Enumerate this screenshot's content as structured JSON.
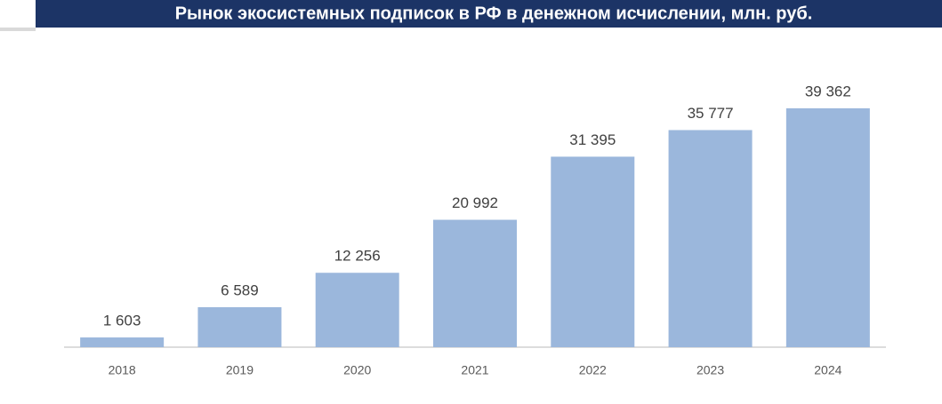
{
  "chart_data": {
    "type": "bar",
    "title": "Рынок экосистемных подписок в РФ в денежном исчислении, млн. руб.",
    "categories": [
      "2018",
      "2019",
      "2020",
      "2021",
      "2022",
      "2023",
      "2024"
    ],
    "values": [
      1603,
      6589,
      12256,
      20992,
      31395,
      35777,
      39362
    ],
    "value_labels": [
      "1 603",
      "6 589",
      "12 256",
      "20 992",
      "31 395",
      "35 777",
      "39 362"
    ],
    "color": "#9bb7dc"
  }
}
